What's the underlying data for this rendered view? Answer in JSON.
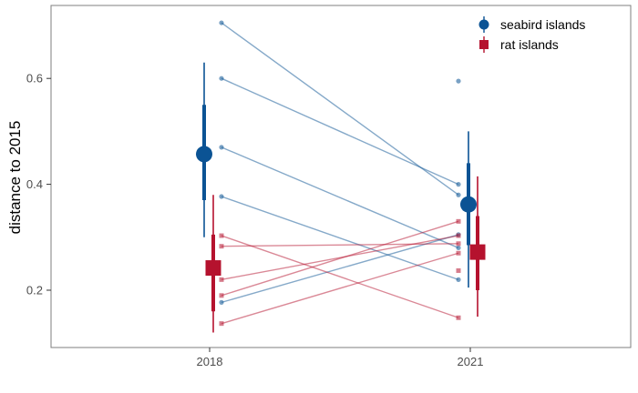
{
  "chart_data": {
    "type": "scatter",
    "title": "",
    "xlabel": "",
    "ylabel": "distance to 2015",
    "categories": [
      "2018",
      "2021"
    ],
    "yticks": [
      "0.2",
      "0.4",
      "0.6"
    ],
    "ylim": [
      0.09,
      0.74
    ],
    "grid": false,
    "legend_position": "top-right",
    "series": [
      {
        "name": "seabird islands",
        "color": "#0b5394",
        "marker": "circle",
        "pairs": [
          [
            0.705,
            0.38
          ],
          [
            0.6,
            0.4
          ],
          [
            0.47,
            0.28
          ],
          [
            0.377,
            0.22
          ],
          [
            0.177,
            0.305
          ]
        ],
        "extra_points": [
          [
            1,
            0.595
          ]
        ],
        "summary": [
          {
            "x": 0,
            "mean": 0.457,
            "inner": [
              0.37,
              0.55
            ],
            "outer": [
              0.3,
              0.63
            ]
          },
          {
            "x": 1,
            "mean": 0.362,
            "inner": [
              0.285,
              0.44
            ],
            "outer": [
              0.205,
              0.5
            ]
          }
        ]
      },
      {
        "name": "rat islands",
        "color": "#b5122e",
        "marker": "square",
        "pairs": [
          [
            0.303,
            0.148
          ],
          [
            0.283,
            0.288
          ],
          [
            0.22,
            0.303
          ],
          [
            0.19,
            0.33
          ],
          [
            0.137,
            0.27
          ]
        ],
        "extra_points": [
          [
            1,
            0.237
          ]
        ],
        "summary": [
          {
            "x": 0,
            "mean": 0.242,
            "inner": [
              0.16,
              0.305
            ],
            "outer": [
              0.12,
              0.38
            ]
          },
          {
            "x": 1,
            "mean": 0.272,
            "inner": [
              0.2,
              0.34
            ],
            "outer": [
              0.15,
              0.415
            ]
          }
        ]
      }
    ]
  }
}
